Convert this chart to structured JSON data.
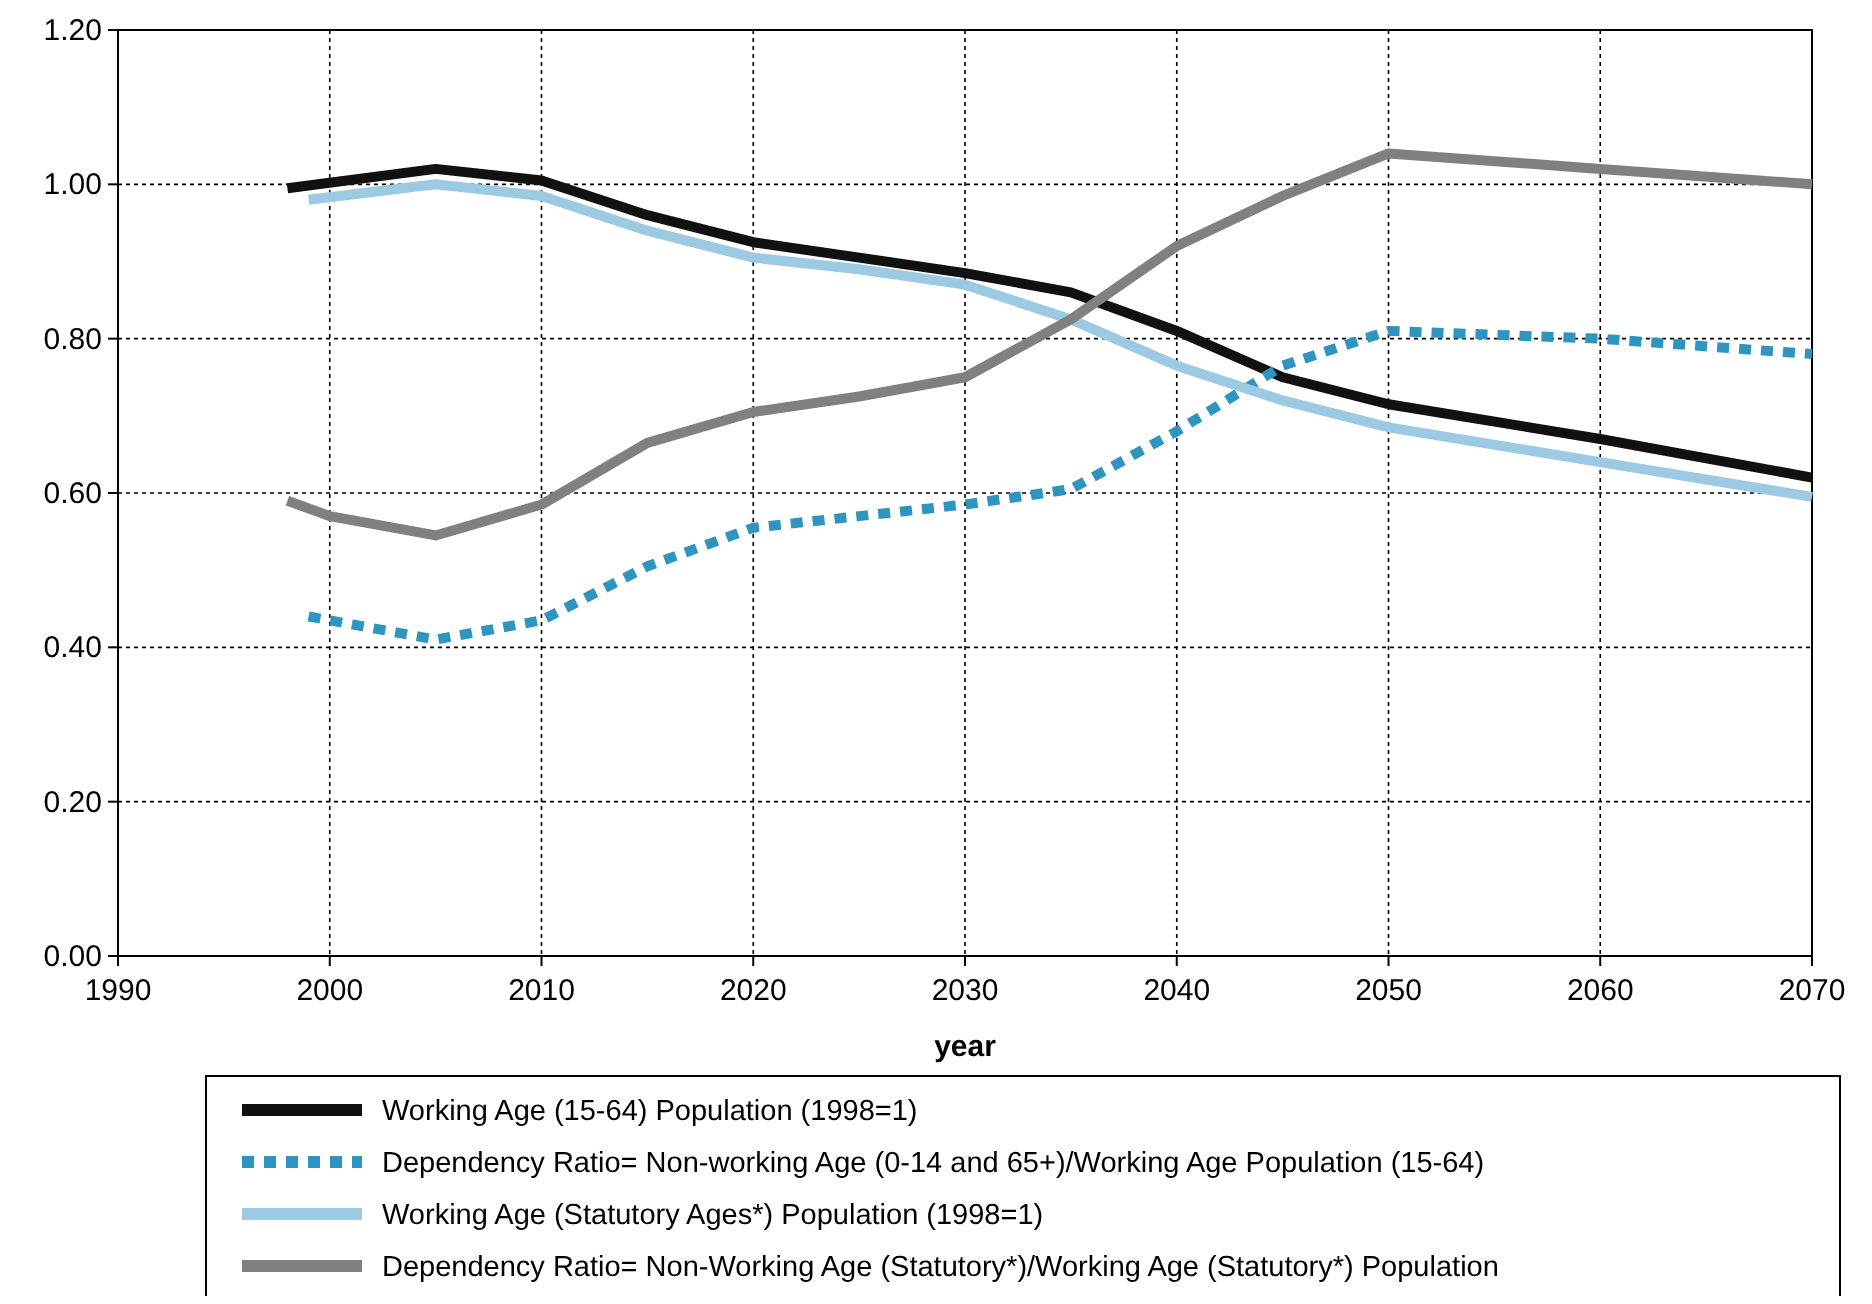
{
  "chart_data": {
    "type": "line",
    "xlabel": "year",
    "xlim": [
      1990,
      2070
    ],
    "xticks": [
      1990,
      2000,
      2010,
      2020,
      2030,
      2040,
      2050,
      2060,
      2070
    ],
    "ylim": [
      0,
      1.2
    ],
    "yticks": [
      {
        "value": 0,
        "label": "0.00"
      },
      {
        "value": 0.2,
        "label": "0.20"
      },
      {
        "value": 0.4,
        "label": "0.40"
      },
      {
        "value": 0.6,
        "label": "0.60"
      },
      {
        "value": 0.8,
        "label": "0.80"
      },
      {
        "value": 1,
        "label": "1.00"
      },
      {
        "value": 1.2,
        "label": "1.20"
      }
    ],
    "grid": true,
    "legend": "bottom",
    "marker": "none",
    "series": [
      {
        "name": "Working Age (15-64) Population (1998=1)",
        "color": "#111111",
        "line_style": "solid",
        "x": [
          1998,
          2005,
          2010,
          2015,
          2020,
          2025,
          2030,
          2035,
          2040,
          2045,
          2050,
          2060,
          2070
        ],
        "values": [
          0.995,
          1.02,
          1.005,
          0.96,
          0.925,
          0.905,
          0.885,
          0.86,
          0.81,
          0.75,
          0.715,
          0.67,
          0.62
        ]
      },
      {
        "name": "Dependency Ratio= Non-working Age (0-14 and 65+)/Working Age Population (15-64)",
        "color": "#2e95c0",
        "line_style": "dotted",
        "x": [
          1999,
          2005,
          2010,
          2015,
          2020,
          2025,
          2030,
          2035,
          2040,
          2045,
          2050,
          2060,
          2070
        ],
        "values": [
          0.44,
          0.41,
          0.435,
          0.505,
          0.555,
          0.57,
          0.585,
          0.605,
          0.68,
          0.765,
          0.81,
          0.8,
          0.78
        ]
      },
      {
        "name": "Working Age (Statutory Ages*) Population (1998=1)",
        "color": "#9ccae3",
        "line_style": "solid",
        "x": [
          1999,
          2005,
          2010,
          2015,
          2020,
          2025,
          2030,
          2035,
          2040,
          2045,
          2050,
          2060,
          2070
        ],
        "values": [
          0.98,
          1.0,
          0.985,
          0.94,
          0.905,
          0.89,
          0.87,
          0.825,
          0.765,
          0.72,
          0.685,
          0.64,
          0.595
        ]
      },
      {
        "name": "Dependency Ratio= Non-Working Age (Statutory*)/Working Age (Statutory*) Population",
        "color": "#808080",
        "line_style": "solid",
        "x": [
          1998,
          2000,
          2005,
          2010,
          2015,
          2020,
          2025,
          2030,
          2035,
          2040,
          2045,
          2050,
          2060,
          2070
        ],
        "values": [
          0.59,
          0.57,
          0.545,
          0.585,
          0.665,
          0.705,
          0.725,
          0.75,
          0.825,
          0.92,
          0.985,
          1.04,
          1.02,
          1.0
        ]
      }
    ]
  }
}
